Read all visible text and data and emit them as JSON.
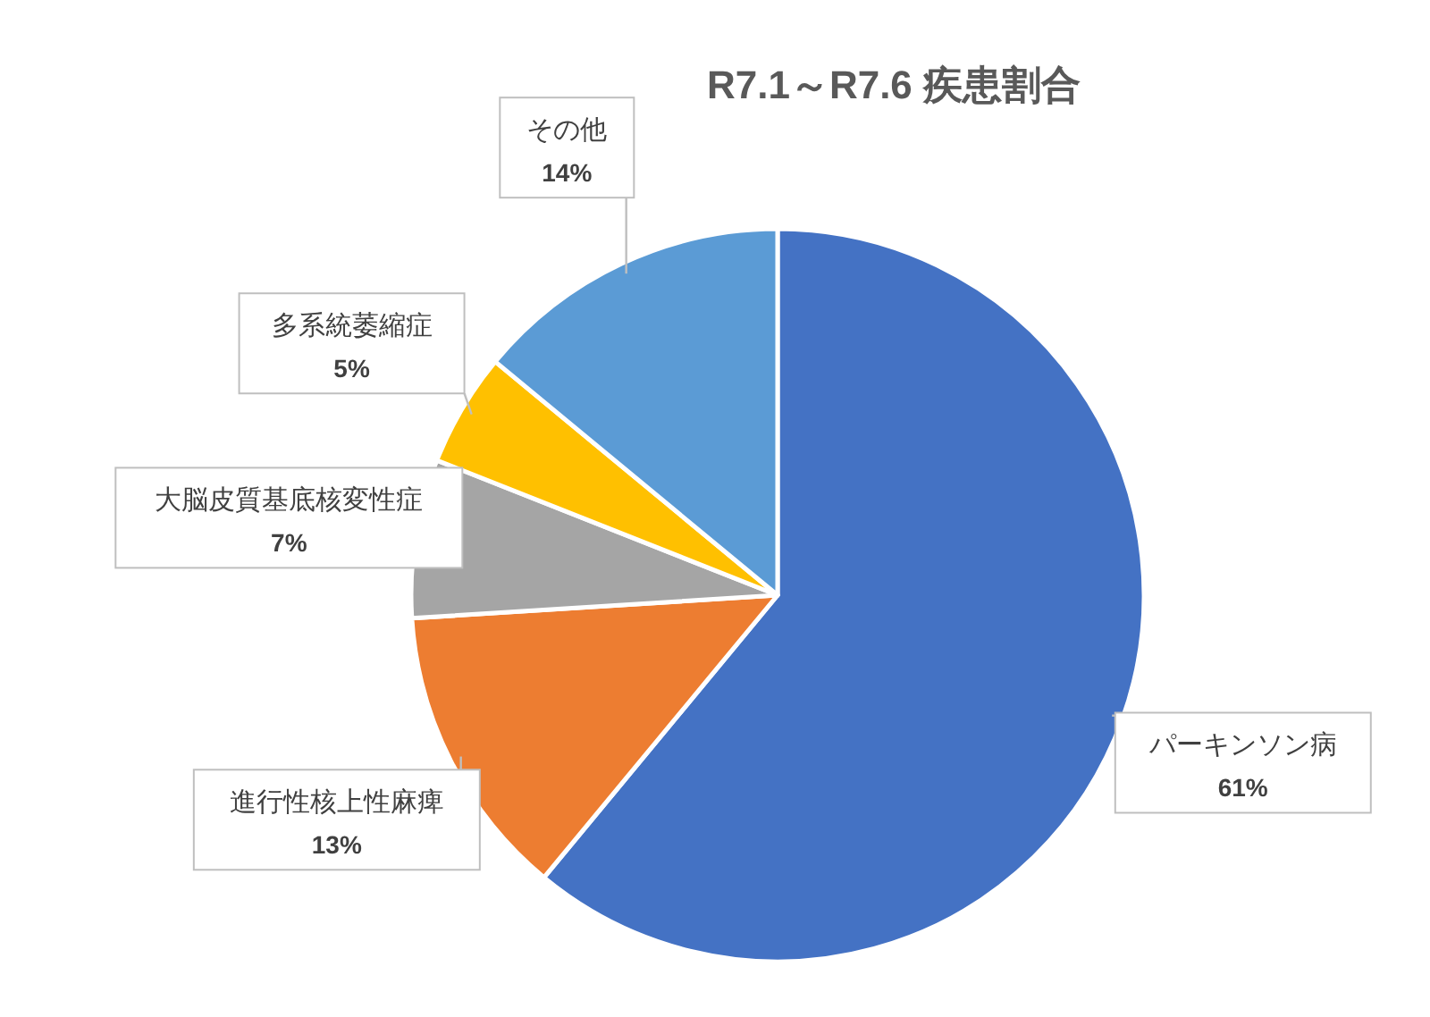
{
  "chart_data": {
    "type": "pie",
    "title": "R7.1～R7.6 疾患割合",
    "categories": [
      "パーキンソン病",
      "進行性核上性麻痺",
      "大脳皮質基底核変性症",
      "多系統萎縮症",
      "その他"
    ],
    "values": [
      61,
      13,
      7,
      5,
      14
    ],
    "colors": [
      "#4472c4",
      "#ed7d31",
      "#a5a5a5",
      "#ffc000",
      "#5b9bd5"
    ],
    "value_labels": [
      "61%",
      "13%",
      "7%",
      "5%",
      "14%"
    ]
  }
}
